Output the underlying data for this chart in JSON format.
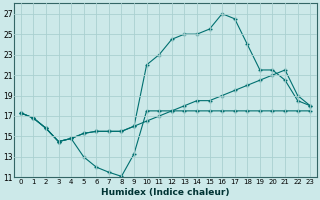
{
  "xlabel": "Humidex (Indice chaleur)",
  "background_color": "#cce9e9",
  "grid_color": "#aad0d0",
  "line_color": "#007070",
  "xlim": [
    -0.5,
    23.5
  ],
  "ylim": [
    11,
    28
  ],
  "xticks": [
    0,
    1,
    2,
    3,
    4,
    5,
    6,
    7,
    8,
    9,
    10,
    11,
    12,
    13,
    14,
    15,
    16,
    17,
    18,
    19,
    20,
    21,
    22,
    23
  ],
  "yticks": [
    11,
    13,
    15,
    17,
    19,
    21,
    23,
    25,
    27
  ],
  "line1_x": [
    0,
    1,
    2,
    3,
    4,
    5,
    6,
    7,
    8,
    9,
    10,
    11,
    12,
    13,
    14,
    15,
    16,
    17,
    18,
    19,
    20,
    21,
    22,
    23
  ],
  "line1_y": [
    17.3,
    16.8,
    15.8,
    14.5,
    14.8,
    13.0,
    12.0,
    11.5,
    11.1,
    13.3,
    17.5,
    17.5,
    17.5,
    17.5,
    17.5,
    17.5,
    17.5,
    17.5,
    17.5,
    17.5,
    17.5,
    17.5,
    17.5,
    17.5
  ],
  "line2_x": [
    0,
    1,
    2,
    3,
    4,
    5,
    6,
    7,
    8,
    9,
    10,
    11,
    12,
    13,
    14,
    15,
    16,
    17,
    18,
    19,
    20,
    21,
    22,
    23
  ],
  "line2_y": [
    17.3,
    16.8,
    15.8,
    14.5,
    14.8,
    15.3,
    15.5,
    15.5,
    15.5,
    16.0,
    16.5,
    17.0,
    17.5,
    18.0,
    18.5,
    18.5,
    19.0,
    19.5,
    20.0,
    20.5,
    21.0,
    21.5,
    19.0,
    18.0
  ],
  "line3_x": [
    0,
    1,
    2,
    3,
    4,
    5,
    6,
    7,
    8,
    9,
    10,
    11,
    12,
    13,
    14,
    15,
    16,
    17,
    18,
    19,
    20,
    21,
    22,
    23
  ],
  "line3_y": [
    17.3,
    16.8,
    15.8,
    14.5,
    14.8,
    15.3,
    15.5,
    15.5,
    15.5,
    16.0,
    22.0,
    23.0,
    24.5,
    25.0,
    25.0,
    25.5,
    27.0,
    26.5,
    24.0,
    21.5,
    21.5,
    20.5,
    18.5,
    18.0
  ]
}
